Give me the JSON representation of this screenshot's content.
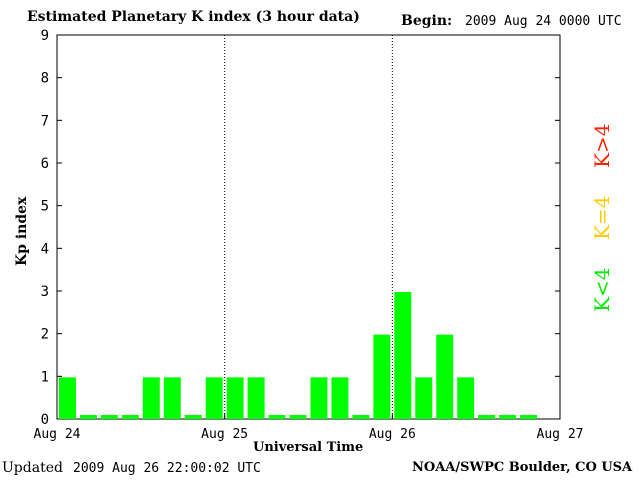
{
  "chart_data": {
    "type": "bar",
    "title": "Estimated Planetary K index (3 hour data)",
    "begin_label": "Begin:",
    "begin_value": "2009 Aug 24 0000 UTC",
    "xlabel": "Universal Time",
    "ylabel": "Kp index",
    "ylim": [
      0,
      9
    ],
    "yticks": [
      "0",
      "1",
      "2",
      "3",
      "4",
      "5",
      "6",
      "7",
      "8",
      "9"
    ],
    "xticks": [
      "Aug 24",
      "Aug 25",
      "Aug 26",
      "Aug 27"
    ],
    "slots": 24,
    "values": [
      1,
      0,
      0,
      0,
      1,
      1,
      0,
      1,
      1,
      1,
      0,
      0,
      1,
      1,
      0,
      2,
      3,
      1,
      2,
      1,
      0,
      0,
      0,
      null
    ],
    "bar_color": "#00ff00",
    "grid": "dotted vertical lines at day boundaries",
    "updated_label": "Updated",
    "updated_value": "2009 Aug 26 22:00:02 UTC",
    "credit": "NOAA/SWPC Boulder, CO USA",
    "legend": [
      {
        "label": "K<4",
        "color": "#00ff00"
      },
      {
        "label": "K=4",
        "color": "#ffcc00"
      },
      {
        "label": "K>4",
        "color": "#ff2200"
      }
    ]
  }
}
